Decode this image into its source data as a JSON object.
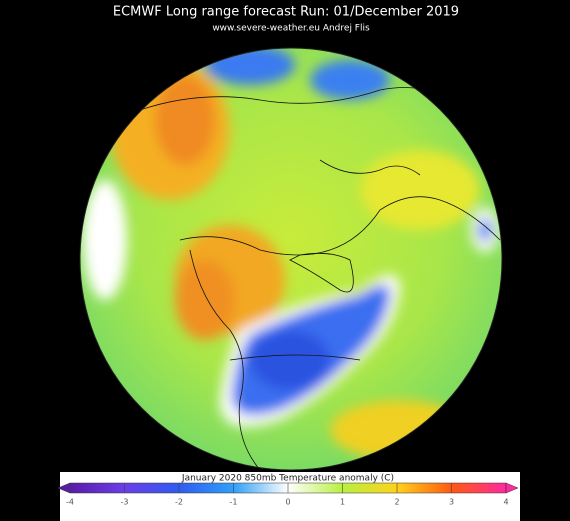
{
  "title": "ECMWF Long range forecast  Run: 01/December 2019",
  "subtitle": "www.severe-weather.eu  Andrej Flis",
  "legend": {
    "label": "January 2020    850mb Temperature anomaly (C)",
    "lim": [
      -4,
      4
    ],
    "ticks": [
      -4,
      -3,
      -2,
      -1,
      0,
      1,
      2,
      3,
      4
    ],
    "colors": [
      "#5a1aa8",
      "#6a3ee8",
      "#2f5cf0",
      "#2fa0f8",
      "#ffffff",
      "#b8f040",
      "#ffd21a",
      "#ff5a10",
      "#ff2aa0"
    ]
  }
}
